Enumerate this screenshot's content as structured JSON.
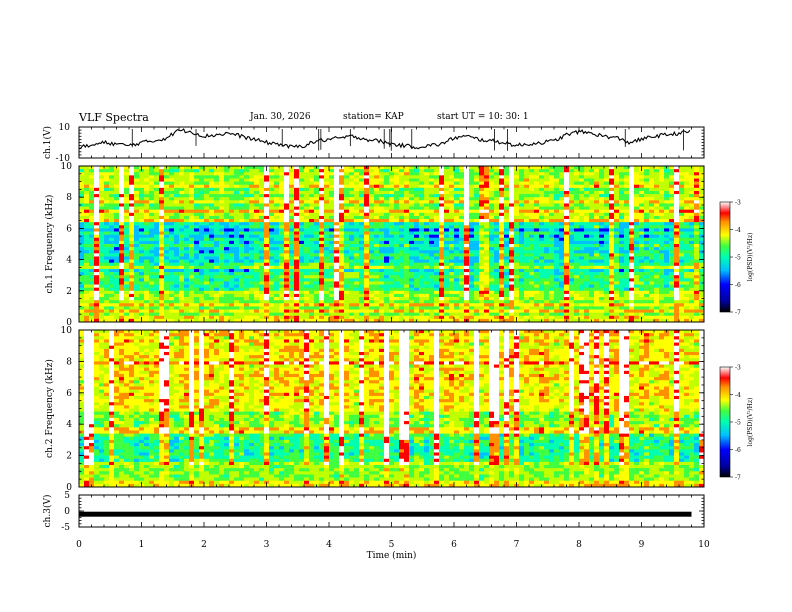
{
  "header": {
    "title": "VLF Spectra",
    "date": "Jan. 30, 2026",
    "station": "station= KAP",
    "start": "start  UT =   10: 30: 1"
  },
  "colors": {
    "scale": [
      "#0000a0",
      "#0000ff",
      "#00c0ff",
      "#00ffb0",
      "#40ff40",
      "#c0ff00",
      "#ffff00",
      "#ff9000",
      "#ff0000",
      "#ffffff"
    ],
    "trace": "#000000"
  },
  "chart_data": [
    {
      "type": "line",
      "name": "ch1-voltage",
      "ylabel": "ch.1(V)",
      "ylim": [
        -10,
        10
      ],
      "y_ticks": [
        "10",
        "-10"
      ],
      "x": [
        0,
        0.2,
        0.4,
        0.6,
        0.8,
        1.0,
        1.2,
        1.4,
        1.6,
        1.8,
        2.0,
        2.2,
        2.4,
        2.6,
        2.8,
        3.0,
        3.2,
        3.4,
        3.6,
        3.8,
        4.0,
        4.2,
        4.4,
        4.6,
        4.8,
        5.0,
        5.2,
        5.4,
        5.6,
        5.8,
        6.0,
        6.2,
        6.4,
        6.6,
        6.8,
        7.0,
        7.2,
        7.4,
        7.6,
        7.8,
        8.0,
        8.2,
        8.4,
        8.6,
        8.8,
        9.0,
        9.2,
        9.4,
        9.6,
        9.8
      ],
      "values": [
        -3,
        -2,
        0,
        -1,
        -2,
        0,
        1,
        3,
        8,
        7,
        4,
        5,
        6,
        4,
        2,
        0,
        -1,
        -3,
        -2,
        1,
        2,
        3,
        4,
        2,
        1,
        -1,
        -2,
        -3,
        -2,
        -1,
        3,
        4,
        2,
        1,
        0,
        -2,
        -1,
        0,
        1,
        5,
        7,
        6,
        4,
        3,
        0,
        2,
        4,
        5,
        6,
        7
      ]
    },
    {
      "type": "heatmap",
      "name": "ch1-spectrogram",
      "ylabel": "ch.1 Frequency (kHz)",
      "ylim": [
        0,
        10
      ],
      "y_ticks": [
        "0",
        "2",
        "4",
        "6",
        "8",
        "10"
      ],
      "colorbar": {
        "label": "log(PSD)(V²/Hz)",
        "range": [
          -7,
          -3
        ],
        "ticks": [
          "-3",
          "-4",
          "-5",
          "-6",
          "-7"
        ]
      }
    },
    {
      "type": "heatmap",
      "name": "ch2-spectrogram",
      "ylabel": "ch.2 Frequency (kHz)",
      "ylim": [
        0,
        10
      ],
      "y_ticks": [
        "0",
        "2",
        "4",
        "6",
        "8",
        "10"
      ],
      "colorbar": {
        "label": "log(PSD)(V²/Hz)",
        "range": [
          -7,
          -3
        ],
        "ticks": [
          "-3",
          "-4",
          "-5",
          "-6",
          "-7"
        ]
      }
    },
    {
      "type": "line",
      "name": "ch3-voltage",
      "ylabel": "ch.3(V)",
      "ylim": [
        -5,
        5
      ],
      "y_ticks": [
        "5",
        "0",
        "-5"
      ],
      "x": [
        0,
        9.8
      ],
      "values": [
        -1,
        -1
      ]
    }
  ],
  "x_axis": {
    "label": "Time (min)",
    "xlim": [
      0,
      10
    ],
    "ticks": [
      "0",
      "1",
      "2",
      "3",
      "4",
      "5",
      "6",
      "7",
      "8",
      "9",
      "10"
    ]
  }
}
